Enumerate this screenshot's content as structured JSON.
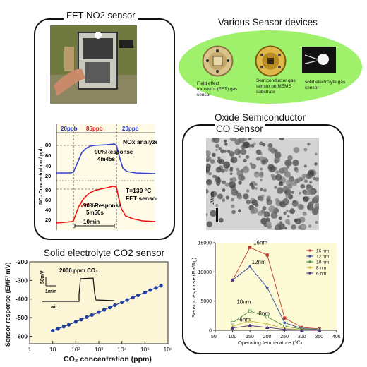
{
  "fet": {
    "title": "FET-NO2 sensor",
    "phase_labels": [
      "20ppb",
      "85ppb",
      "20ppb"
    ],
    "ylabel": "NO₂ Concentration / ppb",
    "top_ticks": [
      "80",
      "60",
      "40",
      "20"
    ],
    "bottom_ticks": [
      "80",
      "60",
      "40",
      "20"
    ],
    "analyzer_label": "NOx analyzer",
    "analyzer_response_line1": "90%Response",
    "analyzer_response_line2": "4m45s",
    "temp_label": "T=130 °C",
    "fet_label": "FET sensor",
    "fet_response_line1": "90%Response",
    "fet_response_line2": "5m50s",
    "scale_label": "10min",
    "colors": {
      "analyzer": "#3344cc",
      "fet": "#ee1111",
      "phase_blue": "#2233bb",
      "phase_red": "#dd1111",
      "bg": "#fffbe6"
    }
  },
  "various": {
    "title": "Various Sensor devices",
    "devices": [
      {
        "label": "Field effect transistor (FET) gas sensor"
      },
      {
        "label": "Semiconductor gas sensor on MEMS substrate"
      },
      {
        "label": "solid electrolyte gas sensor"
      }
    ],
    "colors": {
      "ellipse": "#9ff06a"
    }
  },
  "oxide": {
    "title_line1": "Oxide Semiconductor",
    "title_line2": "CO Sensor",
    "tem_scale": "20nm"
  },
  "co2": {
    "title": "Solid electrolyte CO2 sensor",
    "ylabel": "Sensor response (EMF/ mV)",
    "xlabel": "CO₂ concentration (ppm)",
    "yticks": [
      "-200",
      "-300",
      "-400",
      "-500",
      "-600"
    ],
    "xticks": [
      "1",
      "10",
      "10²",
      "10³",
      "10⁴",
      "10⁵",
      "10⁶"
    ],
    "inset_label": "2000 ppm CO₂",
    "inset_scale_v": "50mV",
    "inset_scale_t": "1min",
    "inset_air": "air",
    "colors": {
      "bg": "#fdf6d6",
      "line": "#223388",
      "points": "#1f3fa0"
    }
  },
  "chart_data": [
    {
      "type": "line",
      "title": "",
      "xlabel": "Operating temperature (℃)",
      "ylabel": "Sensor response (Ra/Rg)",
      "x": [
        100,
        150,
        200,
        250,
        300,
        350
      ],
      "xlim": [
        50,
        400
      ],
      "ylim": [
        0,
        15000
      ],
      "xticks": [
        "50",
        "100",
        "150",
        "200",
        "250",
        "300",
        "350",
        "400"
      ],
      "yticks": [
        "0",
        "5000",
        "10000",
        "15000"
      ],
      "legend_position": "top-right",
      "grid": false,
      "series": [
        {
          "name": "16 nm",
          "values": [
            8600,
            14200,
            12900,
            2100,
            500,
            250
          ],
          "color": "#c0392b"
        },
        {
          "name": "12 nm",
          "values": [
            8600,
            10900,
            7300,
            1300,
            300,
            150
          ],
          "color": "#33449c"
        },
        {
          "name": "10 nm",
          "values": [
            1300,
            3300,
            2300,
            700,
            200,
            100
          ],
          "color": "#4a8b3a"
        },
        {
          "name": "8 nm",
          "values": [
            700,
            1600,
            1100,
            300,
            100,
            50
          ],
          "color": "#c9b840"
        },
        {
          "name": "6 nm",
          "values": [
            400,
            800,
            500,
            150,
            50,
            30
          ],
          "color": "#4b2e83"
        }
      ],
      "annotations": [
        "16nm",
        "12nm",
        "10nm",
        "8nm",
        "6nm"
      ]
    },
    {
      "type": "scatter",
      "title": "Solid electrolyte CO2 sensor",
      "xlabel": "CO₂ concentration (ppm)",
      "ylabel": "Sensor response (EMF/ mV)",
      "x": [
        10,
        17,
        30,
        50,
        100,
        170,
        300,
        500,
        1000,
        1700,
        3000,
        5000,
        10000,
        17000,
        30000,
        50000,
        100000,
        170000,
        300000,
        500000
      ],
      "values": [
        -570,
        -560,
        -548,
        -538,
        -522,
        -510,
        -497,
        -486,
        -470,
        -458,
        -445,
        -433,
        -418,
        -405,
        -392,
        -380,
        -365,
        -352,
        -340,
        -328
      ],
      "xlim": [
        1,
        1000000
      ],
      "ylim": [
        -640,
        -200
      ]
    }
  ]
}
